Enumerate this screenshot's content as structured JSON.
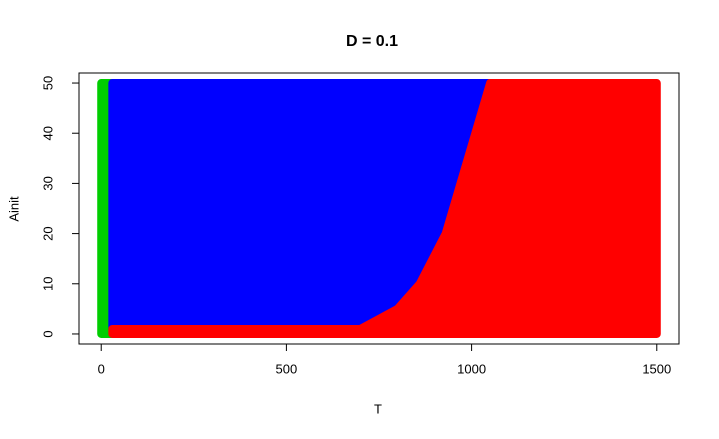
{
  "chart_data": {
    "type": "region",
    "title": "D =  0.1",
    "x_label": "T",
    "y_label": "Ainit",
    "xlim": [
      -60,
      1560
    ],
    "ylim": [
      -2,
      52
    ],
    "xticks": [
      0,
      500,
      1000,
      1500
    ],
    "yticks": [
      0,
      10,
      20,
      30,
      40,
      50
    ],
    "series": [
      {
        "color": "#00cd00",
        "x": [
          0,
          30,
          30,
          0
        ],
        "y": [
          0,
          0,
          50,
          50
        ]
      },
      {
        "color": "#0000ff",
        "x": [
          30,
          700,
          800,
          860,
          930,
          970,
          1010,
          1050,
          30
        ],
        "y": [
          1,
          1,
          5,
          10,
          20,
          30,
          40,
          50,
          50
        ]
      },
      {
        "color": "#ff0000",
        "x": [
          30,
          1500,
          1500,
          1050,
          1010,
          970,
          930,
          860,
          800,
          700,
          30
        ],
        "y": [
          0,
          0,
          50,
          50,
          40,
          30,
          20,
          10,
          5,
          1,
          1
        ]
      }
    ]
  }
}
